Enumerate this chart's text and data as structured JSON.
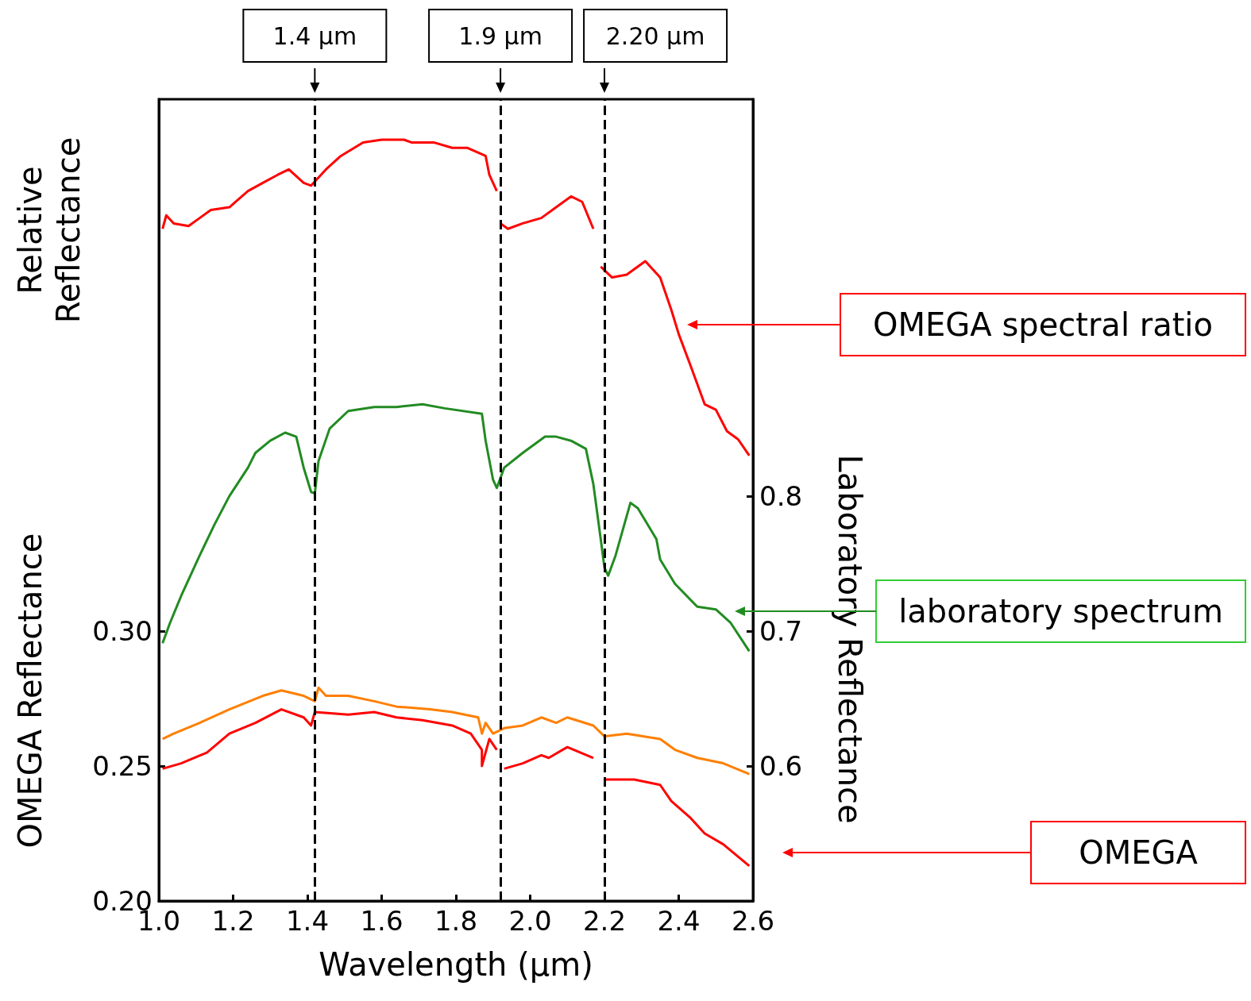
{
  "chart_data": {
    "type": "line",
    "xlabel": "Wavelength (μm)",
    "ylabel": "OMEGA Reflectance",
    "y2label": "Laboratory Reflectance",
    "annotations": [
      "Relative Reflectance"
    ],
    "xlim": [
      1.0,
      2.6
    ],
    "xticks": [
      {
        "value": 1.0,
        "label": "1.0"
      },
      1.2,
      1.4,
      1.6,
      1.8,
      {
        "value": 2.0,
        "label": "2.0"
      },
      2.2,
      2.4,
      2.6
    ],
    "ylim": [
      0.2,
      0.497
    ],
    "yticks": [
      {
        "value": 0.2,
        "label": "0.20"
      },
      0.25,
      {
        "value": 0.3,
        "label": "0.30"
      }
    ],
    "y2lim": [
      0.5,
      1.094
    ],
    "y2ticks": [
      0.6,
      0.7,
      0.8
    ],
    "marker": "none",
    "line_style": "solid",
    "grid": false,
    "legend": "right",
    "ref_lines": [
      {
        "axis": "x",
        "value": 1.42,
        "label": "1.4 μm",
        "color": "#000000",
        "line_style": "dashed"
      },
      {
        "axis": "x",
        "value": 1.92,
        "label": "1.9 μm",
        "color": "#000000",
        "line_style": "dashed"
      },
      {
        "axis": "x",
        "value": 2.2,
        "label": "2.20 μm",
        "color": "#000000",
        "line_style": "dashed"
      }
    ],
    "series": [
      {
        "name": "OMEGA spectral ratio",
        "color": "#ff0000",
        "x": [
          1.01,
          1.02,
          1.04,
          1.08,
          1.11,
          1.14,
          1.19,
          1.24,
          1.28,
          1.32,
          1.35,
          1.39,
          1.41,
          1.45,
          1.49,
          1.55,
          1.6,
          1.66,
          1.68,
          1.74,
          1.79,
          1.83,
          1.88,
          1.89,
          1.91,
          1.915,
          1.92,
          1.94,
          1.98,
          2.03,
          2.07,
          2.11,
          2.14,
          2.17,
          2.18,
          2.19,
          2.22,
          2.26,
          2.31,
          2.35,
          2.38,
          2.4,
          2.43,
          2.47,
          2.5,
          2.53,
          2.56,
          2.59
        ],
        "values": [
          0.449,
          0.454,
          0.451,
          0.45,
          0.453,
          0.456,
          0.457,
          0.463,
          0.466,
          0.469,
          0.471,
          0.466,
          0.465,
          0.471,
          0.476,
          0.481,
          0.482,
          0.482,
          0.481,
          0.481,
          0.479,
          0.479,
          0.476,
          0.469,
          0.463,
          null,
          0.451,
          0.449,
          0.451,
          0.453,
          0.457,
          0.461,
          0.459,
          0.449,
          null,
          0.435,
          0.431,
          0.432,
          0.437,
          0.431,
          0.419,
          0.41,
          0.399,
          0.384,
          0.382,
          0.374,
          0.371,
          0.365
        ]
      },
      {
        "name": "laboratory spectrum",
        "color": "#228b22",
        "axis": "y2",
        "x": [
          1.01,
          1.03,
          1.06,
          1.11,
          1.15,
          1.19,
          1.24,
          1.26,
          1.3,
          1.34,
          1.37,
          1.39,
          1.41,
          1.42,
          1.43,
          1.46,
          1.51,
          1.58,
          1.64,
          1.71,
          1.77,
          1.87,
          1.88,
          1.9,
          1.91,
          1.93,
          1.98,
          2.04,
          2.07,
          2.11,
          2.15,
          2.17,
          2.19,
          2.2,
          2.21,
          2.23,
          2.27,
          2.29,
          2.34,
          2.35,
          2.39,
          2.45,
          2.5,
          2.54,
          2.59
        ],
        "values": [
          0.691,
          0.706,
          0.726,
          0.756,
          0.779,
          0.8,
          0.821,
          0.832,
          0.841,
          0.847,
          0.844,
          0.821,
          0.803,
          0.802,
          0.826,
          0.85,
          0.863,
          0.866,
          0.866,
          0.868,
          0.865,
          0.861,
          0.841,
          0.812,
          0.806,
          0.821,
          0.832,
          0.844,
          0.844,
          0.841,
          0.835,
          0.809,
          0.768,
          0.747,
          0.741,
          0.756,
          0.795,
          0.791,
          0.768,
          0.753,
          0.735,
          0.718,
          0.716,
          0.706,
          0.685
        ]
      },
      {
        "color": "#ff7f00",
        "x": [
          1.01,
          1.04,
          1.11,
          1.19,
          1.28,
          1.33,
          1.39,
          1.42,
          1.43,
          1.45,
          1.51,
          1.58,
          1.64,
          1.73,
          1.79,
          1.86,
          1.87,
          1.88,
          1.9,
          1.93,
          1.98,
          2.03,
          2.07,
          2.1,
          2.17,
          2.2,
          2.26,
          2.35,
          2.39,
          2.45,
          2.52,
          2.59
        ],
        "values": [
          0.26,
          0.262,
          0.266,
          0.271,
          0.276,
          0.278,
          0.276,
          0.274,
          0.279,
          0.276,
          0.276,
          0.274,
          0.272,
          0.271,
          0.27,
          0.268,
          0.262,
          0.266,
          0.262,
          0.264,
          0.265,
          0.268,
          0.266,
          0.268,
          0.265,
          0.261,
          0.262,
          0.26,
          0.256,
          0.253,
          0.251,
          0.247
        ]
      },
      {
        "name": "OMEGA",
        "color": "#ff0000",
        "x": [
          1.01,
          1.06,
          1.13,
          1.19,
          1.26,
          1.33,
          1.39,
          1.41,
          1.42,
          1.51,
          1.58,
          1.64,
          1.71,
          1.79,
          1.84,
          1.87,
          1.87,
          1.89,
          1.91,
          1.915,
          1.93,
          1.98,
          2.03,
          2.05,
          2.1,
          2.17,
          2.18,
          2.2,
          2.28,
          2.35,
          2.38,
          2.43,
          2.47,
          2.52,
          2.59
        ],
        "values": [
          0.249,
          0.251,
          0.255,
          0.262,
          0.266,
          0.271,
          0.268,
          0.265,
          0.27,
          0.269,
          0.27,
          0.268,
          0.267,
          0.265,
          0.262,
          0.256,
          0.25,
          0.26,
          0.256,
          null,
          0.249,
          0.251,
          0.254,
          0.253,
          0.257,
          0.253,
          null,
          0.245,
          0.245,
          0.243,
          0.237,
          0.231,
          0.225,
          0.221,
          0.213
        ]
      }
    ]
  }
}
